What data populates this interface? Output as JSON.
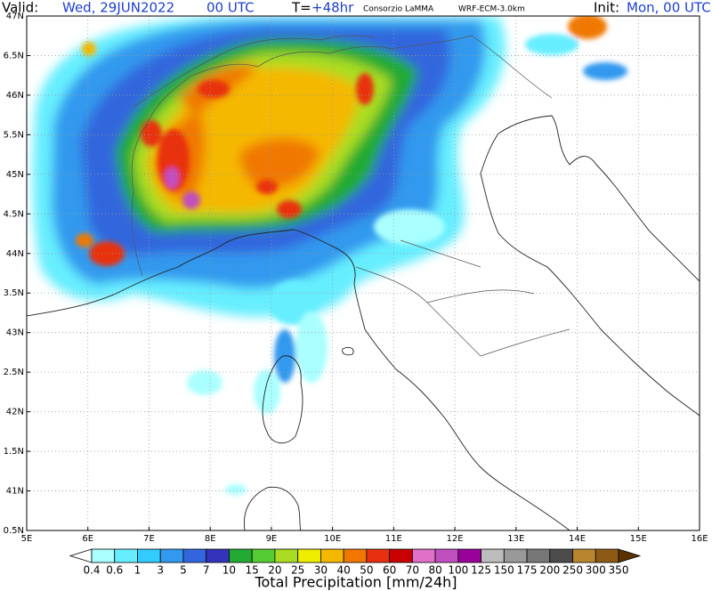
{
  "header": {
    "valid_label": "Valid:",
    "valid_date": "Wed, 29JUN2022",
    "valid_hour": "00 UTC",
    "lead_label": "T=",
    "lead_time": "+48hr",
    "source": "Consorzio LaMMA",
    "model": "WRF-ECM-3.0km",
    "init_label": "Init:",
    "init_time": "Mon, 00 UTC"
  },
  "map": {
    "lat_labels": [
      "47N",
      "6.5N",
      "46N",
      "5.5N",
      "45N",
      "4.5N",
      "44N",
      "3.5N",
      "43N",
      "2.5N",
      "42N",
      "1.5N",
      "41N",
      "0.5N"
    ],
    "lon_labels": [
      "5E",
      "6E",
      "7E",
      "8E",
      "9E",
      "10E",
      "11E",
      "12E",
      "13E",
      "14E",
      "15E",
      "16E"
    ]
  },
  "legend": {
    "title": "Total Precipitation [mm/24h]",
    "levels": [
      "0.4",
      "0.6",
      "1",
      "3",
      "5",
      "7",
      "10",
      "15",
      "20",
      "25",
      "30",
      "40",
      "50",
      "60",
      "70",
      "80",
      "100",
      "125",
      "150",
      "175",
      "200",
      "250",
      "300",
      "350"
    ],
    "colors": [
      "#ffffff",
      "#aaffff",
      "#66eeff",
      "#33ccff",
      "#3399ee",
      "#3366dd",
      "#3333bb",
      "#22aa33",
      "#55cc33",
      "#aadd22",
      "#eeee00",
      "#f5b800",
      "#f07800",
      "#e83010",
      "#c80000",
      "#e070c8",
      "#c050c0",
      "#9a009a",
      "#bdbdbd",
      "#999999",
      "#777777",
      "#4c4c4c",
      "#b8862e",
      "#8c5a14",
      "#5a3200"
    ]
  }
}
